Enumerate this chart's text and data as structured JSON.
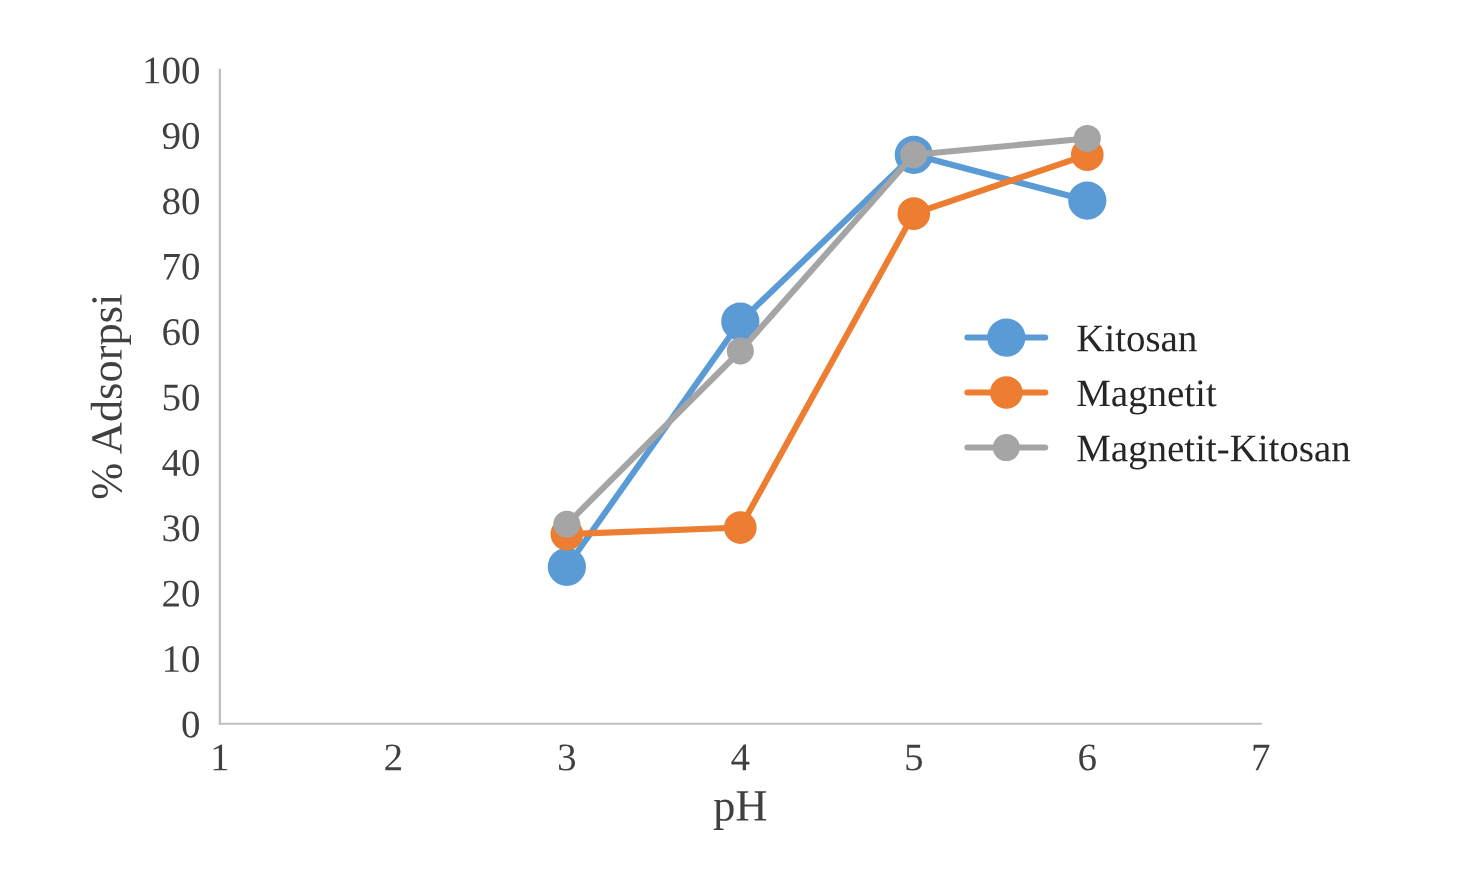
{
  "chart_data": {
    "type": "line",
    "xlabel": "pH",
    "ylabel": "% Adsorpsi",
    "x": [
      3,
      4,
      5,
      6
    ],
    "series": [
      {
        "name": "Kitosan",
        "color": "#5b9bd5",
        "values": [
          24,
          61.5,
          87,
          80
        ]
      },
      {
        "name": "Magnetit",
        "color": "#ed7d31",
        "values": [
          29,
          30,
          78,
          87
        ]
      },
      {
        "name": "Magnetit-Kitosan",
        "color": "#a5a5a5",
        "values": [
          30.5,
          57,
          87,
          89.5
        ]
      }
    ],
    "xlim": [
      1,
      7
    ],
    "xticks": [
      1,
      2,
      3,
      4,
      5,
      6,
      7
    ],
    "ylim": [
      0,
      100
    ],
    "yticks": [
      0,
      10,
      20,
      30,
      40,
      50,
      60,
      70,
      80,
      90,
      100
    ],
    "grid": false,
    "legend": "right",
    "marker": "circle",
    "line_style": "solid"
  }
}
